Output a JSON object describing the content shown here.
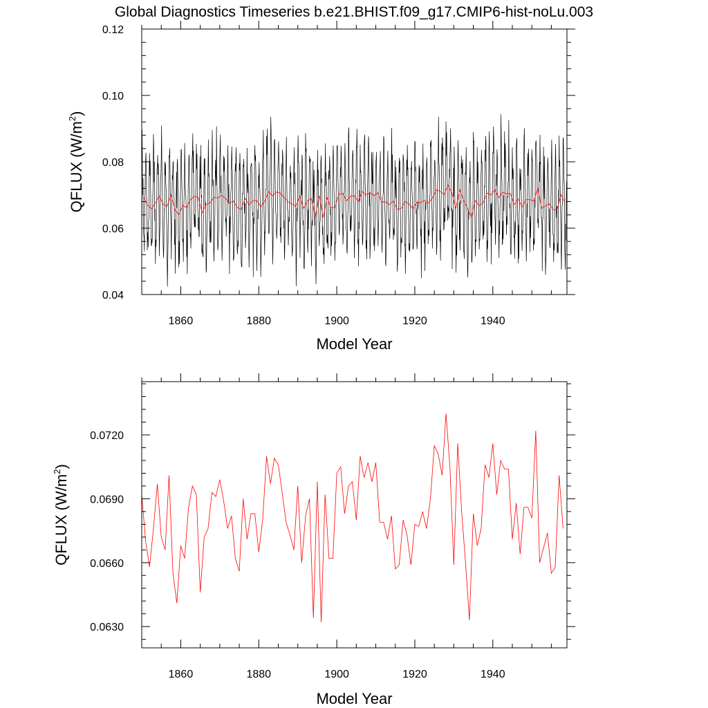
{
  "title": "Global Diagnostics Timeseries b.e21.BHIST.f09_g17.CMIP6-hist-noLu.003",
  "chart_data": [
    {
      "type": "line",
      "title": "",
      "xlabel": "Model Year",
      "ylabel": "QFLUX (W/m",
      "ylabel_sup": "2",
      "ylabel_close": ")",
      "xlim": [
        1850,
        1959
      ],
      "ylim": [
        0.04,
        0.12
      ],
      "xticks": [
        1860,
        1880,
        1900,
        1920,
        1940
      ],
      "xtick_labels": [
        "1860",
        "1880",
        "1900",
        "1920",
        "1940"
      ],
      "yticks": [
        0.04,
        0.06,
        0.08,
        0.1,
        0.12
      ],
      "ytick_labels": [
        "0.04",
        "0.06",
        "0.08",
        "0.10",
        "0.12"
      ],
      "series": [
        {
          "kind": "monthly",
          "color": "#000000",
          "x_start": 1850.0,
          "x_step": 0.0833333,
          "annual_mean_series": 1,
          "seasonal_amplitude": 0.014,
          "noise_amplitude": 0.006,
          "seed": 7
        },
        {
          "kind": "annual",
          "color": "#ff0000",
          "x_start": 1850.5,
          "x_step": 1
        }
      ]
    },
    {
      "type": "line",
      "title": "",
      "xlabel": "Model Year",
      "ylabel": "QFLUX (W/m",
      "ylabel_sup": "2",
      "ylabel_close": ")",
      "xlim": [
        1850,
        1959
      ],
      "ylim": [
        0.062,
        0.0745
      ],
      "xticks": [
        1860,
        1880,
        1900,
        1920,
        1940
      ],
      "xtick_labels": [
        "1860",
        "1880",
        "1900",
        "1920",
        "1940"
      ],
      "yticks": [
        0.063,
        0.066,
        0.069,
        0.072
      ],
      "ytick_labels": [
        "0.0630",
        "0.0660",
        "0.0690",
        "0.0720"
      ],
      "series": [
        {
          "kind": "annual",
          "color": "#ff0000",
          "x_start": 1850,
          "x_step": 1,
          "values": [
            0.0692,
            0.067,
            0.0658,
            0.0676,
            0.0697,
            0.0672,
            0.0666,
            0.0701,
            0.0655,
            0.0641,
            0.0668,
            0.0662,
            0.0686,
            0.0696,
            0.0692,
            0.0646,
            0.0672,
            0.0676,
            0.0693,
            0.0691,
            0.0699,
            0.0689,
            0.0676,
            0.0682,
            0.0662,
            0.0656,
            0.069,
            0.0671,
            0.0683,
            0.0683,
            0.0665,
            0.068,
            0.071,
            0.0697,
            0.0709,
            0.0706,
            0.0693,
            0.0679,
            0.0673,
            0.0666,
            0.0696,
            0.066,
            0.0682,
            0.069,
            0.0634,
            0.0698,
            0.0632,
            0.0692,
            0.0662,
            0.0662,
            0.0702,
            0.0705,
            0.0683,
            0.0696,
            0.0698,
            0.068,
            0.071,
            0.07,
            0.0707,
            0.0698,
            0.0707,
            0.0679,
            0.0679,
            0.0671,
            0.0682,
            0.0657,
            0.0659,
            0.068,
            0.0673,
            0.0659,
            0.0678,
            0.0677,
            0.0684,
            0.0676,
            0.069,
            0.0715,
            0.0711,
            0.0701,
            0.073,
            0.0705,
            0.0659,
            0.0716,
            0.0684,
            0.066,
            0.0633,
            0.0683,
            0.0668,
            0.0676,
            0.0706,
            0.07,
            0.0716,
            0.0692,
            0.0708,
            0.0704,
            0.0704,
            0.0671,
            0.0688,
            0.0664,
            0.0686,
            0.0686,
            0.0681,
            0.0722,
            0.066,
            0.0667,
            0.0674,
            0.0655,
            0.0658,
            0.0701,
            0.0676
          ]
        }
      ]
    }
  ]
}
